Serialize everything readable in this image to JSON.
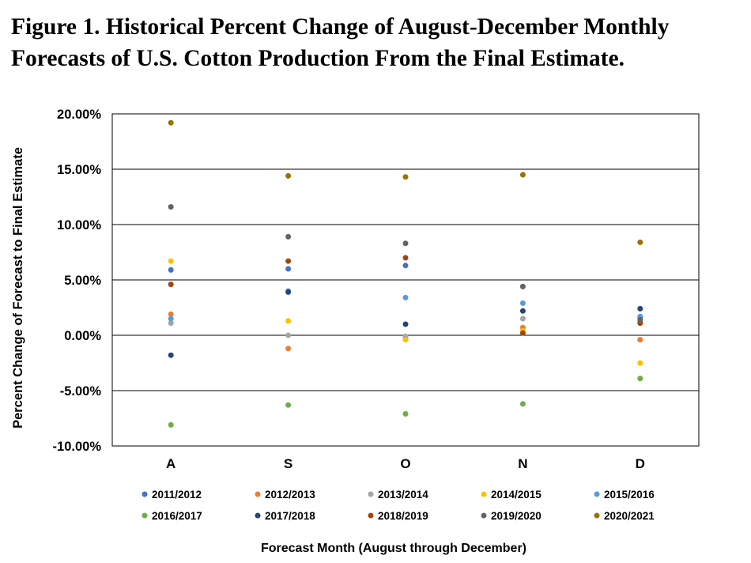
{
  "title_lines": [
    "Figure 1.  Historical Percent Change of August-December Monthly",
    "Forecasts of U.S. Cotton Production From the Final Estimate."
  ],
  "chart_data": {
    "type": "scatter",
    "categories": [
      "A",
      "S",
      "O",
      "N",
      "D"
    ],
    "xlabel": "Forecast Month (August through December)",
    "ylabel": "Percent Change of Forecast to Final Estimate",
    "ylim": [
      -10,
      20
    ],
    "yticks": [
      -10,
      -5,
      0,
      5,
      10,
      15,
      20
    ],
    "ytick_labels": [
      "-10.00%",
      "-5.00%",
      "0.00%",
      "5.00%",
      "10.00%",
      "15.00%",
      "20.00%"
    ],
    "grid": "horizontal",
    "legend_position": "bottom",
    "series": [
      {
        "name": "2011/2012",
        "color": "#4472C4",
        "values": [
          5.9,
          6.0,
          6.3,
          4.4,
          1.6
        ]
      },
      {
        "name": "2012/2013",
        "color": "#ED7D31",
        "values": [
          1.9,
          -1.2,
          -0.2,
          0.7,
          -0.4
        ]
      },
      {
        "name": "2013/2014",
        "color": "#A5A5A5",
        "values": [
          1.1,
          0.0,
          -0.1,
          1.5,
          1.3
        ]
      },
      {
        "name": "2014/2015",
        "color": "#FFC000",
        "values": [
          6.7,
          1.3,
          -0.4,
          0.4,
          -2.5
        ]
      },
      {
        "name": "2015/2016",
        "color": "#5B9BD5",
        "values": [
          1.5,
          4.0,
          3.4,
          2.9,
          1.7
        ]
      },
      {
        "name": "2016/2017",
        "color": "#70AD47",
        "values": [
          -8.1,
          -6.3,
          -7.1,
          -6.2,
          -3.9
        ]
      },
      {
        "name": "2017/2018",
        "color": "#264478",
        "values": [
          -1.8,
          3.9,
          1.0,
          2.2,
          2.4
        ]
      },
      {
        "name": "2018/2019",
        "color": "#9E480E",
        "values": [
          4.6,
          6.7,
          7.0,
          0.2,
          1.1
        ]
      },
      {
        "name": "2019/2020",
        "color": "#636363",
        "values": [
          11.6,
          8.9,
          8.3,
          4.4,
          1.4
        ]
      },
      {
        "name": "2020/2021",
        "color": "#997300",
        "values": [
          19.2,
          14.4,
          14.3,
          14.5,
          8.4
        ]
      }
    ]
  }
}
